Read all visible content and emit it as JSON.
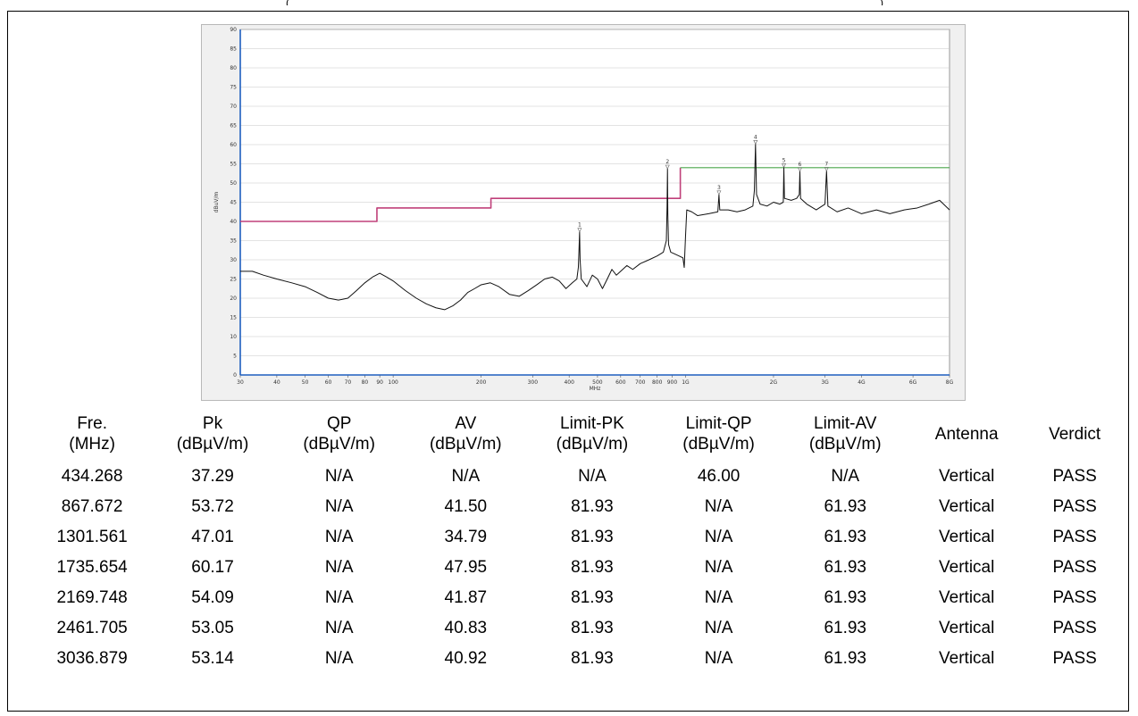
{
  "page": {
    "top_fragment_left": "(",
    "top_fragment_right": ")"
  },
  "chart_data": {
    "type": "line",
    "xlabel": "MHz",
    "ylabel": "dBuV/m",
    "x_scale": "log",
    "xlim": [
      30,
      8000
    ],
    "ylim": [
      0,
      90
    ],
    "y_ticks": [
      0,
      5,
      10,
      15,
      20,
      25,
      30,
      35,
      40,
      45,
      50,
      55,
      60,
      65,
      70,
      75,
      80,
      85,
      90
    ],
    "x_ticks": [
      {
        "value": 30,
        "label": "30"
      },
      {
        "value": 40,
        "label": "40"
      },
      {
        "value": 50,
        "label": "50"
      },
      {
        "value": 60,
        "label": "60"
      },
      {
        "value": 70,
        "label": "70"
      },
      {
        "value": 80,
        "label": "80"
      },
      {
        "value": 90,
        "label": "90"
      },
      {
        "value": 100,
        "label": "100"
      },
      {
        "value": 200,
        "label": "200"
      },
      {
        "value": 300,
        "label": "300"
      },
      {
        "value": 400,
        "label": "400"
      },
      {
        "value": 500,
        "label": "500"
      },
      {
        "value": 600,
        "label": "600"
      },
      {
        "value": 700,
        "label": "700"
      },
      {
        "value": 800,
        "label": "800"
      },
      {
        "value": 900,
        "label": "900"
      },
      {
        "value": 1000,
        "label": "1G"
      },
      {
        "value": 2000,
        "label": "2G"
      },
      {
        "value": 3000,
        "label": "3G"
      },
      {
        "value": 4000,
        "label": "4G"
      },
      {
        "value": 6000,
        "label": "6G"
      },
      {
        "value": 8000,
        "label": "8G"
      }
    ],
    "grid": true,
    "colors": {
      "trace": "#111111",
      "limit_low": "#c0407a",
      "limit_high": "#4ca64c",
      "plot_bg": "#ffffff",
      "axis": "#1f5fbf"
    },
    "series": [
      {
        "role": "limit_low",
        "x": [
          30,
          88,
          88,
          216,
          216,
          960,
          960
        ],
        "y": [
          40,
          40,
          43.5,
          43.5,
          46,
          46,
          54
        ]
      },
      {
        "role": "limit_high",
        "x": [
          960,
          8000
        ],
        "y": [
          54,
          54
        ]
      },
      {
        "role": "trace",
        "x": [
          30,
          33,
          36,
          40,
          45,
          50,
          55,
          60,
          65,
          70,
          75,
          80,
          85,
          90,
          95,
          100,
          110,
          120,
          130,
          140,
          150,
          160,
          170,
          180,
          190,
          200,
          215,
          230,
          250,
          270,
          290,
          310,
          330,
          350,
          370,
          390,
          410,
          425,
          430,
          432,
          434.268,
          436,
          440,
          460,
          480,
          500,
          520,
          540,
          560,
          580,
          600,
          630,
          660,
          700,
          750,
          800,
          840,
          860,
          865,
          867.672,
          870,
          875,
          890,
          920,
          950,
          980,
          990,
          1000,
          1010,
          1050,
          1100,
          1200,
          1290,
          1301.561,
          1310,
          1400,
          1500,
          1600,
          1700,
          1720,
          1735.654,
          1750,
          1800,
          1900,
          2000,
          2100,
          2160,
          2169.748,
          2180,
          2300,
          2400,
          2450,
          2461.705,
          2475,
          2600,
          2800,
          3000,
          3036.879,
          3070,
          3300,
          3600,
          4000,
          4500,
          5000,
          5600,
          6200,
          6800,
          7400,
          8000
        ],
        "y": [
          27,
          27,
          26,
          25,
          24,
          23,
          21.5,
          20,
          19.5,
          20,
          22,
          24,
          25.5,
          26.5,
          25.5,
          24.5,
          22,
          20,
          18.5,
          17.5,
          17,
          18,
          19.5,
          21.5,
          22.5,
          23.5,
          24,
          23,
          21,
          20.5,
          22,
          23.5,
          25,
          25.5,
          24.5,
          22.5,
          24,
          25,
          28,
          32,
          37.29,
          30,
          25,
          23,
          26,
          25,
          22.5,
          25,
          27.5,
          26,
          27,
          28.5,
          27.5,
          29,
          30,
          31,
          32,
          35,
          44,
          53.72,
          42,
          34,
          32,
          31.5,
          31,
          30.5,
          28,
          36,
          43,
          42.5,
          41.5,
          42,
          42.5,
          47.01,
          43,
          43,
          42.5,
          43,
          44,
          48,
          60.17,
          47,
          44.5,
          44,
          45,
          44.5,
          45,
          54.09,
          46,
          45.5,
          46,
          47,
          53.05,
          46,
          44.5,
          43,
          44.5,
          53.14,
          44,
          42.5,
          43.5,
          42,
          43,
          42,
          43,
          43.5,
          44.5,
          45.5,
          43
        ]
      }
    ],
    "markers": [
      {
        "label": "1",
        "x": 434.268,
        "y": 37.29
      },
      {
        "label": "2",
        "x": 867.672,
        "y": 53.72
      },
      {
        "label": "3",
        "x": 1301.561,
        "y": 47.01
      },
      {
        "label": "4",
        "x": 1735.654,
        "y": 60.17
      },
      {
        "label": "5",
        "x": 2169.748,
        "y": 54.09
      },
      {
        "label": "6",
        "x": 2461.705,
        "y": 53.05
      },
      {
        "label": "7",
        "x": 3036.879,
        "y": 53.14
      }
    ]
  },
  "table": {
    "headers": [
      [
        "Fre.",
        "(MHz)"
      ],
      [
        "Pk",
        "(dBµV/m)"
      ],
      [
        "QP",
        "(dBµV/m)"
      ],
      [
        "AV",
        "(dBµV/m)"
      ],
      [
        "Limit-PK",
        "(dBµV/m)"
      ],
      [
        "Limit-QP",
        "(dBµV/m)"
      ],
      [
        "Limit-AV",
        "(dBµV/m)"
      ],
      [
        "Antenna",
        ""
      ],
      [
        "Verdict",
        ""
      ]
    ],
    "rows": [
      [
        "434.268",
        "37.29",
        "N/A",
        "N/A",
        "N/A",
        "46.00",
        "N/A",
        "Vertical",
        "PASS"
      ],
      [
        "867.672",
        "53.72",
        "N/A",
        "41.50",
        "81.93",
        "N/A",
        "61.93",
        "Vertical",
        "PASS"
      ],
      [
        "1301.561",
        "47.01",
        "N/A",
        "34.79",
        "81.93",
        "N/A",
        "61.93",
        "Vertical",
        "PASS"
      ],
      [
        "1735.654",
        "60.17",
        "N/A",
        "47.95",
        "81.93",
        "N/A",
        "61.93",
        "Vertical",
        "PASS"
      ],
      [
        "2169.748",
        "54.09",
        "N/A",
        "41.87",
        "81.93",
        "N/A",
        "61.93",
        "Vertical",
        "PASS"
      ],
      [
        "2461.705",
        "53.05",
        "N/A",
        "40.83",
        "81.93",
        "N/A",
        "61.93",
        "Vertical",
        "PASS"
      ],
      [
        "3036.879",
        "53.14",
        "N/A",
        "40.92",
        "81.93",
        "N/A",
        "61.93",
        "Vertical",
        "PASS"
      ]
    ]
  }
}
